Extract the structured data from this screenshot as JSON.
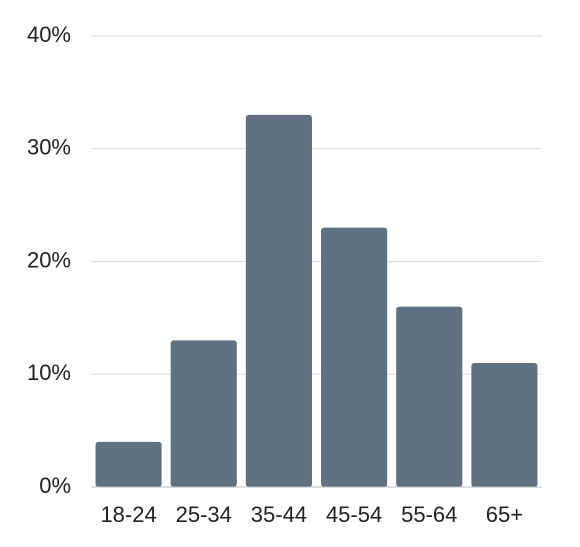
{
  "chart_data": {
    "type": "bar",
    "categories": [
      "18-24",
      "25-34",
      "35-44",
      "45-54",
      "55-64",
      "65+"
    ],
    "values": [
      4,
      13,
      33,
      23,
      16,
      11
    ],
    "color": "#607282",
    "ylim": [
      0,
      40
    ],
    "yticks": [
      {
        "value": 0,
        "label": "0%"
      },
      {
        "value": 10,
        "label": "10%"
      },
      {
        "value": 20,
        "label": "20%"
      },
      {
        "value": 30,
        "label": "30%"
      },
      {
        "value": 40,
        "label": "40%"
      }
    ],
    "grid": true
  }
}
